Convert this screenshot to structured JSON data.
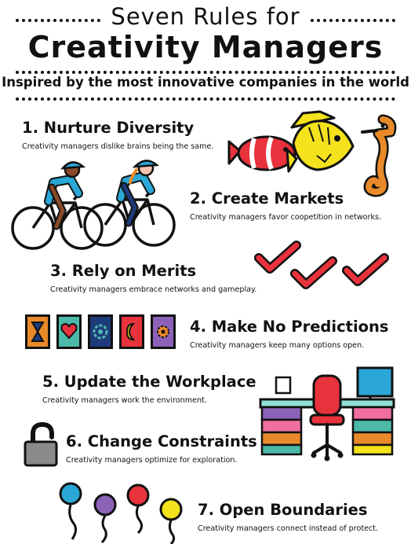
{
  "header": {
    "title_line1": "Seven Rules for",
    "title_line2": "Creativity Managers",
    "subtitle": "Inspired by the most innovative companies in the world"
  },
  "rules": [
    {
      "title": "1. Nurture Diversity",
      "description": "Creativity managers dislike brains being the same."
    },
    {
      "title": "2. Create Markets",
      "description": "Creativity managers favor coopetition in networks."
    },
    {
      "title": "3. Rely on Merits",
      "description": "Creativity managers embrace networks and gameplay."
    },
    {
      "title": "4. Make No Predictions",
      "description": "Creativity managers keep many options open."
    },
    {
      "title": "5. Update the Workplace",
      "description": "Creativity managers work the environment."
    },
    {
      "title": "6. Change Constraints",
      "description": "Creativity managers optimize for exploration."
    },
    {
      "title": "7. Open Boundaries",
      "description": "Creativity managers connect instead of protect."
    }
  ],
  "illustrations": {
    "fish": [
      "clownfish-icon",
      "yellow-fish-icon",
      "seahorse-icon"
    ],
    "cyclists": "cyclists-icon",
    "checkmarks": 3,
    "cards": [
      "hourglass-card-icon",
      "heart-card-icon",
      "flower-card-icon",
      "moon-card-icon",
      "gear-card-icon"
    ],
    "workplace": "desk-icon",
    "lock": "open-padlock-icon",
    "balloons": [
      "blue",
      "purple",
      "red",
      "yellow"
    ]
  },
  "colors": {
    "ink": "#111111",
    "red": "#e8323c",
    "yellow": "#f4e21c",
    "orange": "#e98a2a",
    "cyclist_blue": "#2aa7d6",
    "teal": "#4db9a8",
    "navy": "#1d3b7a",
    "purple": "#8c62b8",
    "pink": "#f06fa0"
  }
}
